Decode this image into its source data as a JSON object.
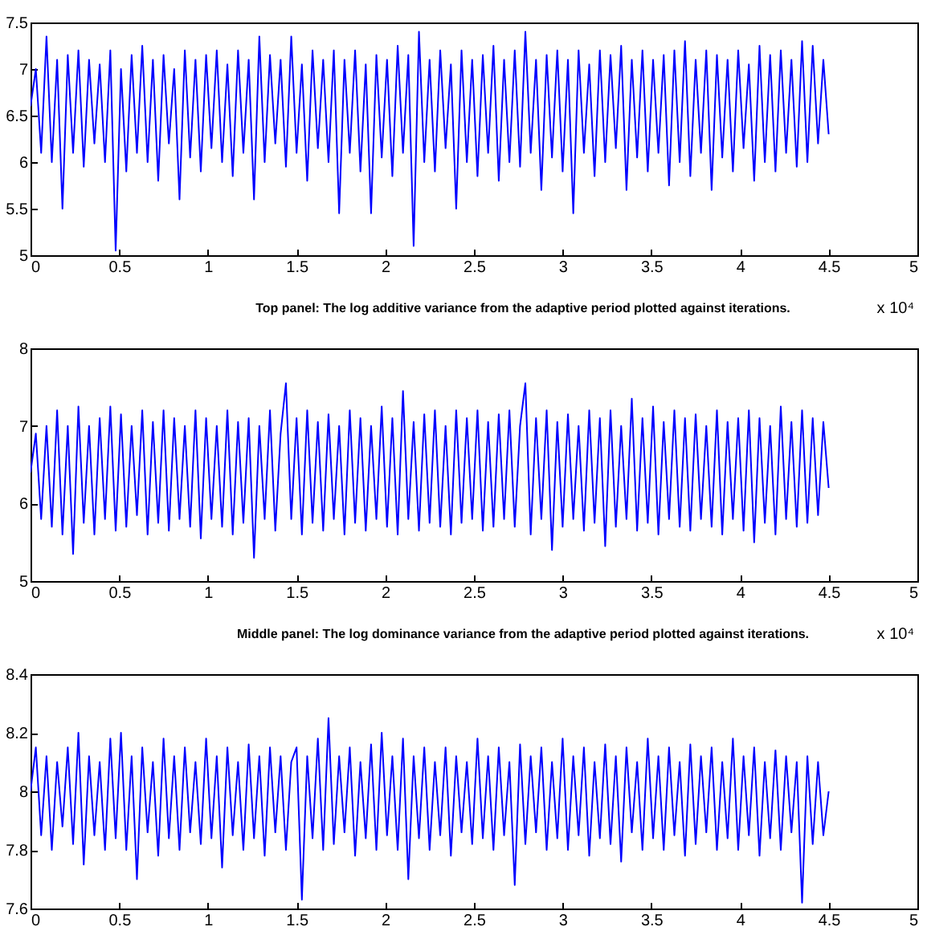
{
  "chart_data": [
    {
      "type": "line",
      "xlabel": "Top panel: The log additive variance from the adaptive period plotted against iterations.",
      "annotations": [
        "x 10⁴"
      ],
      "grid": false,
      "xlim": [
        0,
        5
      ],
      "xticks": [
        0,
        0.5,
        1,
        1.5,
        2,
        2.5,
        3,
        3.5,
        4,
        4.5,
        5
      ],
      "ylim": [
        5,
        7.5
      ],
      "yticks": [
        5,
        5.5,
        6,
        6.5,
        7,
        7.5
      ],
      "x": [
        0,
        0.03,
        0.06,
        0.09,
        0.12,
        0.15,
        0.18,
        0.21,
        0.24,
        0.27,
        0.3,
        0.33,
        0.36,
        0.39,
        0.42,
        0.45,
        0.48,
        0.51,
        0.54,
        0.57,
        0.6,
        0.63,
        0.66,
        0.69,
        0.72,
        0.75,
        0.78,
        0.81,
        0.84,
        0.87,
        0.9,
        0.93,
        0.96,
        0.99,
        1.02,
        1.05,
        1.08,
        1.11,
        1.14,
        1.17,
        1.2,
        1.23,
        1.26,
        1.29,
        1.32,
        1.35,
        1.38,
        1.41,
        1.44,
        1.47,
        1.5,
        1.53,
        1.56,
        1.59,
        1.62,
        1.65,
        1.68,
        1.71,
        1.74,
        1.77,
        1.8,
        1.83,
        1.86,
        1.89,
        1.92,
        1.95,
        1.98,
        2.01,
        2.04,
        2.07,
        2.1,
        2.13,
        2.16,
        2.19,
        2.22,
        2.25,
        2.28,
        2.31,
        2.34,
        2.37,
        2.4,
        2.43,
        2.46,
        2.49,
        2.52,
        2.55,
        2.58,
        2.61,
        2.64,
        2.67,
        2.7,
        2.73,
        2.76,
        2.79,
        2.82,
        2.85,
        2.88,
        2.91,
        2.94,
        2.97,
        3.0,
        3.03,
        3.06,
        3.09,
        3.12,
        3.15,
        3.18,
        3.21,
        3.24,
        3.27,
        3.3,
        3.33,
        3.36,
        3.39,
        3.42,
        3.45,
        3.48,
        3.51,
        3.54,
        3.57,
        3.6,
        3.63,
        3.66,
        3.69,
        3.72,
        3.75,
        3.78,
        3.81,
        3.84,
        3.87,
        3.9,
        3.93,
        3.96,
        3.99,
        4.02,
        4.05,
        4.08,
        4.11,
        4.14,
        4.17,
        4.2,
        4.23,
        4.26,
        4.29,
        4.32,
        4.35,
        4.38,
        4.41,
        4.44,
        4.47,
        4.5
      ],
      "series": [
        {
          "color": "#0000ff",
          "values": [
            6.6,
            7.0,
            6.1,
            7.35,
            6.0,
            7.1,
            5.5,
            7.15,
            6.1,
            7.2,
            5.95,
            7.1,
            6.2,
            7.05,
            6.0,
            7.2,
            5.05,
            7.0,
            5.9,
            7.15,
            6.1,
            7.25,
            6.0,
            7.1,
            5.8,
            7.15,
            6.2,
            7.0,
            5.6,
            7.2,
            6.05,
            7.1,
            5.9,
            7.15,
            6.15,
            7.2,
            6.0,
            7.05,
            5.85,
            7.2,
            6.1,
            7.1,
            5.6,
            7.35,
            6.0,
            7.15,
            6.2,
            7.1,
            5.95,
            7.35,
            6.1,
            7.05,
            5.8,
            7.2,
            6.15,
            7.1,
            6.0,
            7.2,
            5.45,
            7.1,
            6.1,
            7.2,
            5.9,
            7.05,
            5.45,
            7.15,
            6.05,
            7.1,
            5.85,
            7.25,
            6.1,
            7.15,
            5.1,
            7.4,
            6.0,
            7.1,
            5.9,
            7.2,
            6.15,
            7.05,
            5.5,
            7.2,
            6.0,
            7.1,
            5.85,
            7.15,
            6.1,
            7.25,
            5.8,
            7.1,
            6.0,
            7.2,
            5.95,
            7.4,
            6.1,
            7.1,
            5.7,
            7.15,
            6.05,
            7.2,
            5.9,
            7.1,
            5.45,
            7.2,
            6.1,
            7.05,
            5.85,
            7.2,
            6.0,
            7.15,
            6.15,
            7.25,
            5.7,
            7.1,
            6.05,
            7.2,
            5.9,
            7.1,
            6.1,
            7.15,
            5.75,
            7.2,
            6.0,
            7.3,
            5.85,
            7.1,
            6.1,
            7.2,
            5.7,
            7.15,
            6.05,
            7.1,
            5.9,
            7.2,
            6.15,
            7.05,
            5.8,
            7.25,
            6.0,
            7.15,
            5.9,
            7.2,
            6.1,
            7.1,
            5.95,
            7.3,
            6.0,
            7.25,
            6.2,
            7.1,
            6.3
          ]
        }
      ]
    },
    {
      "type": "line",
      "xlabel": "Middle panel: The log dominance variance from the adaptive period plotted against iterations.",
      "annotations": [
        "x 10⁴"
      ],
      "grid": false,
      "xlim": [
        0,
        5
      ],
      "xticks": [
        0,
        0.5,
        1,
        1.5,
        2,
        2.5,
        3,
        3.5,
        4,
        4.5,
        5
      ],
      "ylim": [
        5,
        8
      ],
      "yticks": [
        5,
        6,
        7,
        8
      ],
      "x": [
        0,
        0.03,
        0.06,
        0.09,
        0.12,
        0.15,
        0.18,
        0.21,
        0.24,
        0.27,
        0.3,
        0.33,
        0.36,
        0.39,
        0.42,
        0.45,
        0.48,
        0.51,
        0.54,
        0.57,
        0.6,
        0.63,
        0.66,
        0.69,
        0.72,
        0.75,
        0.78,
        0.81,
        0.84,
        0.87,
        0.9,
        0.93,
        0.96,
        0.99,
        1.02,
        1.05,
        1.08,
        1.11,
        1.14,
        1.17,
        1.2,
        1.23,
        1.26,
        1.29,
        1.32,
        1.35,
        1.38,
        1.41,
        1.44,
        1.47,
        1.5,
        1.53,
        1.56,
        1.59,
        1.62,
        1.65,
        1.68,
        1.71,
        1.74,
        1.77,
        1.8,
        1.83,
        1.86,
        1.89,
        1.92,
        1.95,
        1.98,
        2.01,
        2.04,
        2.07,
        2.1,
        2.13,
        2.16,
        2.19,
        2.22,
        2.25,
        2.28,
        2.31,
        2.34,
        2.37,
        2.4,
        2.43,
        2.46,
        2.49,
        2.52,
        2.55,
        2.58,
        2.61,
        2.64,
        2.67,
        2.7,
        2.73,
        2.76,
        2.79,
        2.82,
        2.85,
        2.88,
        2.91,
        2.94,
        2.97,
        3.0,
        3.03,
        3.06,
        3.09,
        3.12,
        3.15,
        3.18,
        3.21,
        3.24,
        3.27,
        3.3,
        3.33,
        3.36,
        3.39,
        3.42,
        3.45,
        3.48,
        3.51,
        3.54,
        3.57,
        3.6,
        3.63,
        3.66,
        3.69,
        3.72,
        3.75,
        3.78,
        3.81,
        3.84,
        3.87,
        3.9,
        3.93,
        3.96,
        3.99,
        4.02,
        4.05,
        4.08,
        4.11,
        4.14,
        4.17,
        4.2,
        4.23,
        4.26,
        4.29,
        4.32,
        4.35,
        4.38,
        4.41,
        4.44,
        4.47,
        4.5
      ],
      "series": [
        {
          "color": "#0000ff",
          "values": [
            6.4,
            6.9,
            5.8,
            7.0,
            5.7,
            7.2,
            5.6,
            7.0,
            5.35,
            7.25,
            5.75,
            7.0,
            5.6,
            7.1,
            5.8,
            7.25,
            5.65,
            7.15,
            5.7,
            7.0,
            5.85,
            7.2,
            5.6,
            7.05,
            5.75,
            7.2,
            5.65,
            7.1,
            5.8,
            7.0,
            5.7,
            7.2,
            5.55,
            7.1,
            5.8,
            7.0,
            5.7,
            7.2,
            5.6,
            7.05,
            5.75,
            7.1,
            5.3,
            7.0,
            5.8,
            7.2,
            5.65,
            6.9,
            7.55,
            5.8,
            7.1,
            5.6,
            7.2,
            5.75,
            7.05,
            5.65,
            7.15,
            5.8,
            7.0,
            5.6,
            7.2,
            5.75,
            7.1,
            5.65,
            7.0,
            5.8,
            7.25,
            5.7,
            7.1,
            5.6,
            7.45,
            5.8,
            7.05,
            5.65,
            7.15,
            5.75,
            7.2,
            5.7,
            7.0,
            5.6,
            7.2,
            5.75,
            7.1,
            5.8,
            7.2,
            5.65,
            7.05,
            5.7,
            7.15,
            5.8,
            7.2,
            5.7,
            7.0,
            7.55,
            5.6,
            7.1,
            5.8,
            7.2,
            5.4,
            7.05,
            5.7,
            7.15,
            5.8,
            7.0,
            5.65,
            7.2,
            5.75,
            7.1,
            5.45,
            7.2,
            5.7,
            7.0,
            5.8,
            7.35,
            5.65,
            7.1,
            5.75,
            7.25,
            5.6,
            7.05,
            5.8,
            7.2,
            5.7,
            7.1,
            5.65,
            7.15,
            5.8,
            7.0,
            5.7,
            7.2,
            5.6,
            7.05,
            5.8,
            7.1,
            5.65,
            7.2,
            5.5,
            7.1,
            5.75,
            7.0,
            5.6,
            7.25,
            5.8,
            7.05,
            5.7,
            7.2,
            5.75,
            7.1,
            5.85,
            7.05,
            6.2
          ]
        }
      ]
    },
    {
      "type": "line",
      "grid": false,
      "xlim": [
        0,
        5
      ],
      "xticks": [
        0,
        0.5,
        1,
        1.5,
        2,
        2.5,
        3,
        3.5,
        4,
        4.5,
        5
      ],
      "ylim": [
        7.6,
        8.4
      ],
      "yticks": [
        7.6,
        7.8,
        8,
        8.2,
        8.4
      ],
      "x": [
        0,
        0.03,
        0.06,
        0.09,
        0.12,
        0.15,
        0.18,
        0.21,
        0.24,
        0.27,
        0.3,
        0.33,
        0.36,
        0.39,
        0.42,
        0.45,
        0.48,
        0.51,
        0.54,
        0.57,
        0.6,
        0.63,
        0.66,
        0.69,
        0.72,
        0.75,
        0.78,
        0.81,
        0.84,
        0.87,
        0.9,
        0.93,
        0.96,
        0.99,
        1.02,
        1.05,
        1.08,
        1.11,
        1.14,
        1.17,
        1.2,
        1.23,
        1.26,
        1.29,
        1.32,
        1.35,
        1.38,
        1.41,
        1.44,
        1.47,
        1.5,
        1.53,
        1.56,
        1.59,
        1.62,
        1.65,
        1.68,
        1.71,
        1.74,
        1.77,
        1.8,
        1.83,
        1.86,
        1.89,
        1.92,
        1.95,
        1.98,
        2.01,
        2.04,
        2.07,
        2.1,
        2.13,
        2.16,
        2.19,
        2.22,
        2.25,
        2.28,
        2.31,
        2.34,
        2.37,
        2.4,
        2.43,
        2.46,
        2.49,
        2.52,
        2.55,
        2.58,
        2.61,
        2.64,
        2.67,
        2.7,
        2.73,
        2.76,
        2.79,
        2.82,
        2.85,
        2.88,
        2.91,
        2.94,
        2.97,
        3.0,
        3.03,
        3.06,
        3.09,
        3.12,
        3.15,
        3.18,
        3.21,
        3.24,
        3.27,
        3.3,
        3.33,
        3.36,
        3.39,
        3.42,
        3.45,
        3.48,
        3.51,
        3.54,
        3.57,
        3.6,
        3.63,
        3.66,
        3.69,
        3.72,
        3.75,
        3.78,
        3.81,
        3.84,
        3.87,
        3.9,
        3.93,
        3.96,
        3.99,
        4.02,
        4.05,
        4.08,
        4.11,
        4.14,
        4.17,
        4.2,
        4.23,
        4.26,
        4.29,
        4.32,
        4.35,
        4.38,
        4.41,
        4.44,
        4.47,
        4.5
      ],
      "series": [
        {
          "color": "#0000ff",
          "values": [
            8.0,
            8.15,
            7.85,
            8.12,
            7.8,
            8.1,
            7.88,
            8.15,
            7.82,
            8.2,
            7.75,
            8.12,
            7.85,
            8.1,
            7.8,
            8.18,
            7.84,
            8.2,
            7.8,
            8.12,
            7.7,
            8.15,
            7.86,
            8.1,
            7.78,
            8.18,
            7.84,
            8.12,
            7.8,
            8.15,
            7.86,
            8.1,
            7.82,
            8.18,
            7.84,
            8.12,
            7.74,
            8.15,
            7.85,
            8.1,
            7.8,
            8.16,
            7.84,
            8.12,
            7.78,
            8.15,
            7.86,
            8.12,
            7.8,
            8.1,
            8.15,
            7.63,
            8.12,
            7.84,
            8.18,
            7.8,
            8.25,
            7.82,
            8.12,
            7.86,
            8.15,
            7.78,
            8.1,
            7.84,
            8.16,
            7.8,
            8.2,
            7.85,
            8.12,
            7.8,
            8.18,
            7.7,
            8.12,
            7.84,
            8.15,
            7.8,
            8.1,
            7.85,
            8.15,
            7.78,
            8.12,
            7.86,
            8.1,
            7.82,
            8.18,
            7.84,
            8.12,
            7.8,
            8.15,
            7.85,
            8.1,
            7.68,
            8.16,
            7.82,
            8.12,
            7.86,
            8.15,
            7.8,
            8.1,
            7.84,
            8.18,
            7.8,
            8.12,
            7.85,
            8.15,
            7.78,
            8.1,
            7.84,
            8.16,
            7.82,
            8.12,
            7.76,
            8.15,
            7.86,
            8.1,
            7.8,
            8.18,
            7.84,
            8.12,
            7.8,
            8.15,
            7.85,
            8.1,
            7.78,
            8.16,
            7.82,
            8.12,
            7.86,
            8.15,
            7.8,
            8.1,
            7.84,
            8.18,
            7.8,
            8.12,
            7.85,
            8.15,
            7.78,
            8.1,
            7.84,
            8.14,
            7.8,
            8.12,
            7.86,
            8.1,
            7.62,
            8.12,
            7.82,
            8.1,
            7.85,
            8.0
          ]
        }
      ]
    }
  ]
}
